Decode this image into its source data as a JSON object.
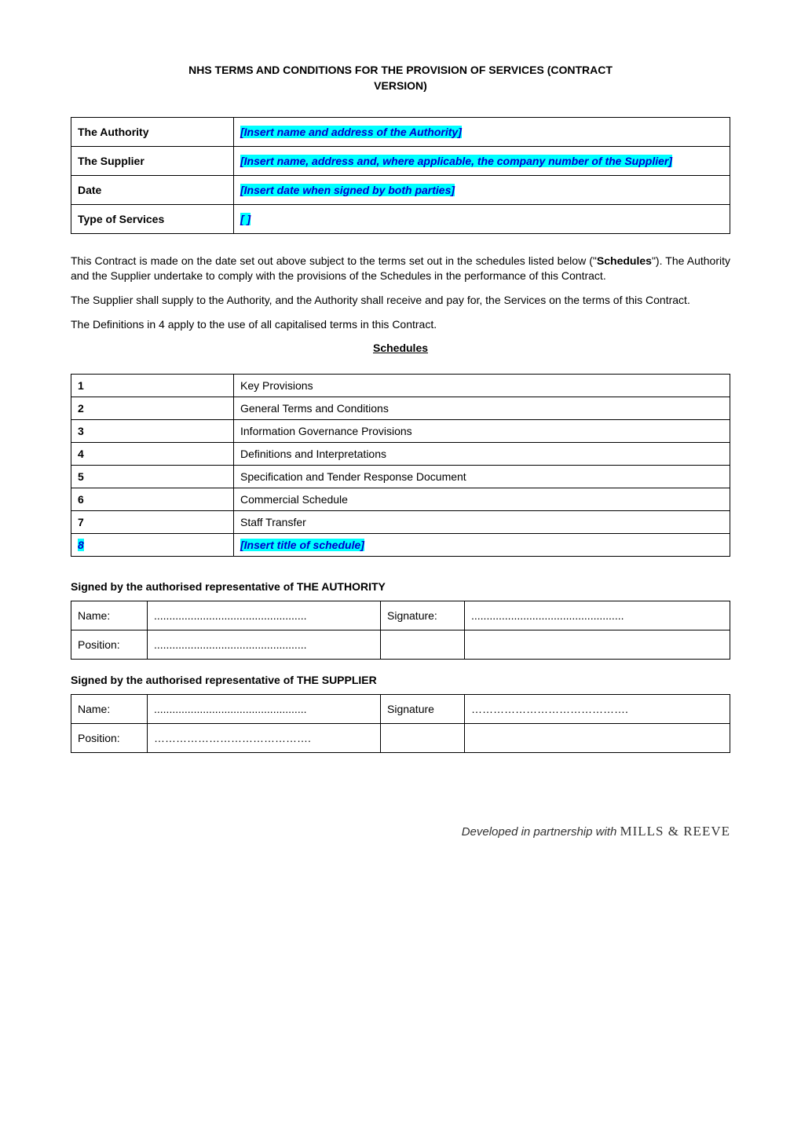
{
  "title_line1": "NHS TERMS AND CONDITIONS FOR THE PROVISION OF SERVICES (CONTRACT",
  "title_line2": "VERSION)",
  "parties": {
    "rows": [
      {
        "label": "The Authority",
        "value": "[Insert name and address of the Authority]",
        "highlight": true
      },
      {
        "label": "The Supplier",
        "value": "[Insert name, address and, where applicable, the company number of the Supplier]",
        "highlight": true
      },
      {
        "label": "Date",
        "value": "[Insert date when signed by both parties]",
        "highlight": true
      },
      {
        "label": "Type of Services",
        "value": "[          ]",
        "highlight": true
      }
    ]
  },
  "para1a": "This Contract is made on the date set out above subject to the terms set out in the schedules listed below (\"",
  "para1b": "Schedules",
  "para1c": "\"). The Authority and the Supplier undertake to comply with the provisions of the Schedules in the performance of this Contract.",
  "para2": "The Supplier shall supply to the Authority, and the Authority shall receive and pay for, the Services on the terms of this Contract.",
  "para3": "The Definitions in 4 apply to the use of all capitalised terms in this Contract.",
  "schedules_title": "Schedules",
  "schedules": [
    {
      "num": "1",
      "title": "Key Provisions",
      "highlight": false
    },
    {
      "num": "2",
      "title": "General Terms and Conditions",
      "highlight": false
    },
    {
      "num": "3",
      "title": "Information Governance Provisions",
      "highlight": false
    },
    {
      "num": "4",
      "title": "Definitions and Interpretations",
      "highlight": false
    },
    {
      "num": "5",
      "title": "Specification and Tender Response Document",
      "highlight": false
    },
    {
      "num": "6",
      "title": "Commercial Schedule",
      "highlight": false
    },
    {
      "num": "7",
      "title": "Staff Transfer",
      "highlight": false
    },
    {
      "num": "8",
      "title": "[Insert title of schedule]",
      "highlight": true
    }
  ],
  "sign_authority_label": "Signed by the authorised representative of THE AUTHORITY",
  "sign_supplier_label": "Signed by the authorised representative of THE SUPPLIER",
  "sig": {
    "name_label": "Name:",
    "position_label": "Position:",
    "signature_label_a": "Signature:",
    "signature_label_b": "Signature",
    "dots": "..................................................",
    "dots2": "……………………………………."
  },
  "footer_prefix": "Developed in partnership with ",
  "footer_brand": "MILLS & REEVE"
}
